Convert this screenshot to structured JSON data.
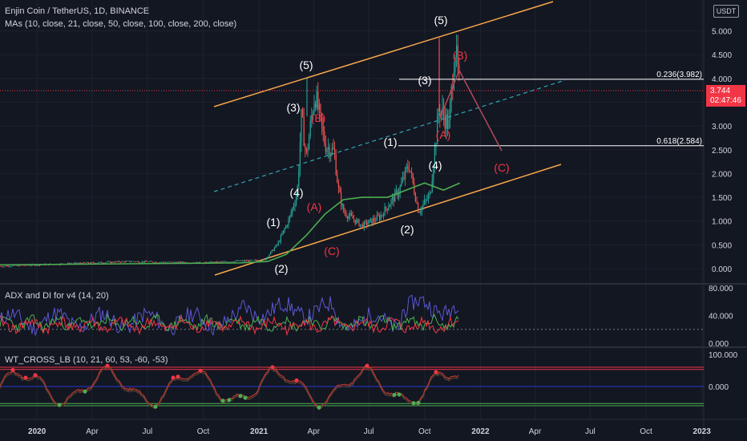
{
  "header": {
    "title": "Enjin Coin / TetherUS, 1D, BINANCE",
    "mas": "MAs (10, close, 21, close, 50, close, 100, close, 200, close)",
    "pane2_title": "ADX and DI for v4 (14, 20)",
    "pane3_title": "WT_CROSS_LB (10, 21, 60, 53, -60, -53)"
  },
  "currency_badge": "USDT",
  "price_label": {
    "price": "3.744",
    "countdown": "02:47:46"
  },
  "colors": {
    "background": "#131722",
    "channel": "#f7a64a",
    "midline": "#2fa5b5",
    "ma": "#4caf50",
    "candle_up": "#26a69a",
    "candle_down": "#ef5350",
    "wave_white": "#ffffff",
    "wave_red": "#f23645",
    "projection": "#b2495a",
    "adx": "#5b57d1",
    "di_plus": "#4caf50",
    "di_minus": "#f23645",
    "wt1": "#c0392b",
    "wt_line": "#5d4037",
    "wt_ob": "#f23645",
    "wt_os": "#4caf50",
    "wt_zero": "#2b35d1"
  },
  "chart_data": [
    {
      "type": "candlestick",
      "title": "Enjin Coin / TetherUS, 1D, BINANCE",
      "y_ticks": [
        "5.000",
        "4.500",
        "4.000",
        "3.500",
        "3.000",
        "2.500",
        "2.000",
        "1.500",
        "1.000",
        "0.500",
        "0.000"
      ],
      "ylim": [
        -0.2,
        5.4
      ],
      "x_ticks": [
        "2020",
        "Apr",
        "Jul",
        "Oct",
        "2021",
        "Apr",
        "Jul",
        "Oct",
        "2022",
        "Apr",
        "Jul",
        "Oct",
        "2023"
      ],
      "ohlc_keypoints": [
        {
          "date": "2019-11",
          "close": 0.05
        },
        {
          "date": "2020-06",
          "close": 0.15
        },
        {
          "date": "2020-10",
          "close": 0.12
        },
        {
          "date": "2020-12",
          "close": 0.16
        },
        {
          "date": "2021-01-10",
          "close": 0.18
        },
        {
          "date": "2021-02-01",
          "close": 0.52
        },
        {
          "date": "2021-02-20",
          "close": 1.05
        },
        {
          "date": "2021-03-05",
          "close": 1.6
        },
        {
          "date": "2021-03-12",
          "close": 3.2
        },
        {
          "date": "2021-03-20",
          "close": 2.35
        },
        {
          "date": "2021-04-03",
          "close": 3.7
        },
        {
          "date": "2021-04-20",
          "close": 2.6
        },
        {
          "date": "2021-05-05",
          "close": 2.45
        },
        {
          "date": "2021-05-12",
          "close": 1.65
        },
        {
          "date": "2021-05-20",
          "close": 1.2
        },
        {
          "date": "2021-06-20",
          "close": 0.9
        },
        {
          "date": "2021-07-20",
          "close": 1.1
        },
        {
          "date": "2021-08-20",
          "close": 1.65
        },
        {
          "date": "2021-09-05",
          "close": 2.2
        },
        {
          "date": "2021-09-21",
          "close": 1.2
        },
        {
          "date": "2021-10-10",
          "close": 1.55
        },
        {
          "date": "2021-10-25",
          "close": 3.4
        },
        {
          "date": "2021-11-10",
          "close": 3.0
        },
        {
          "date": "2021-11-20",
          "close": 4.7
        },
        {
          "date": "2021-11-28",
          "close": 3.74
        }
      ],
      "moving_average": [
        {
          "date": "2019-11",
          "value": 0.08
        },
        {
          "date": "2020-12",
          "value": 0.12
        },
        {
          "date": "2021-01-15",
          "value": 0.15
        },
        {
          "date": "2021-02-15",
          "value": 0.3
        },
        {
          "date": "2021-03-20",
          "value": 0.7
        },
        {
          "date": "2021-04-20",
          "value": 1.15
        },
        {
          "date": "2021-05-20",
          "value": 1.45
        },
        {
          "date": "2021-06-20",
          "value": 1.5
        },
        {
          "date": "2021-08-01",
          "value": 1.5
        },
        {
          "date": "2021-10-01",
          "value": 1.8
        },
        {
          "date": "2021-11-01",
          "value": 1.65
        },
        {
          "date": "2021-11-28",
          "value": 1.8
        }
      ],
      "fib_levels": [
        {
          "label": "0.236(3.982)",
          "value": 3.982
        },
        {
          "label": "0.618(2.584)",
          "value": 2.584
        }
      ],
      "wave_labels": [
        {
          "text": "(1)",
          "color": "white"
        },
        {
          "text": "(2)",
          "color": "white"
        },
        {
          "text": "(3)",
          "color": "white"
        },
        {
          "text": "(4)",
          "color": "white"
        },
        {
          "text": "(5)",
          "color": "white"
        },
        {
          "text": "(A)",
          "color": "red"
        },
        {
          "text": "(B)",
          "color": "red"
        },
        {
          "text": "(C)",
          "color": "red"
        },
        {
          "text": "(1)",
          "color": "white"
        },
        {
          "text": "(2)",
          "color": "white"
        },
        {
          "text": "(3)",
          "color": "white"
        },
        {
          "text": "(4)",
          "color": "white"
        },
        {
          "text": "(5)",
          "color": "white"
        },
        {
          "text": "(A)",
          "color": "red"
        },
        {
          "text": "(B)",
          "color": "red"
        },
        {
          "text": "(C)",
          "color": "red"
        }
      ],
      "current_price": 3.744
    },
    {
      "type": "line",
      "title": "ADX and DI for v4 (14, 20)",
      "y_ticks": [
        "80.000",
        "40.000",
        "0.000"
      ],
      "threshold": 20,
      "series": [
        {
          "values": []
        },
        {
          "values": []
        },
        {
          "values": []
        }
      ]
    },
    {
      "type": "line",
      "title": "WT_CROSS_LB (10, 21, 60, 53, -60, -53)",
      "y_ticks": [
        "100.000",
        "0.000"
      ],
      "levels": [
        60,
        53,
        0,
        -53,
        -60
      ]
    }
  ]
}
